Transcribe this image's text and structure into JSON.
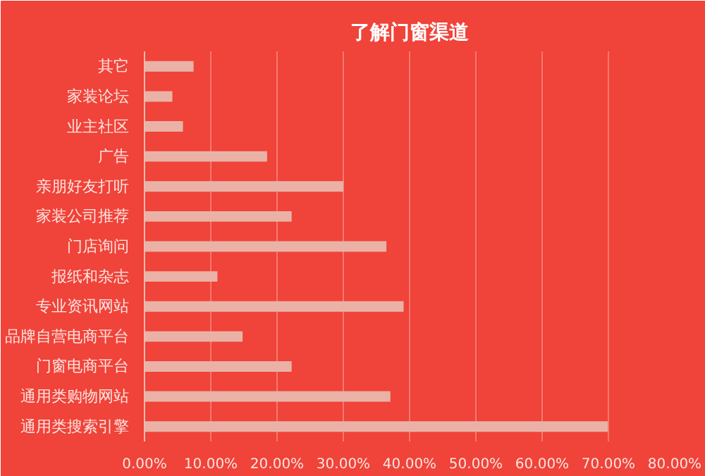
{
  "chart_data": {
    "type": "bar",
    "orientation": "horizontal",
    "title": "了解门窗渠道",
    "categories": [
      "其它",
      "家装论坛",
      "业主社区",
      "广告",
      "亲朋好友打听",
      "家装公司推荐",
      "门店询问",
      "报纸和杂志",
      "专业资讯网站",
      "品牌自营电商平台",
      "门窗电商平台",
      "通用类购物网站",
      "通用类搜索引擎"
    ],
    "values": [
      7.4,
      4.2,
      5.8,
      18.5,
      30.0,
      22.2,
      36.5,
      11.0,
      39.1,
      14.8,
      22.2,
      37.1,
      69.9
    ],
    "color": "#eab2a6",
    "xlim": [
      0,
      80
    ],
    "xticks": [
      {
        "value": 0,
        "label": "0.00%"
      },
      {
        "value": 10,
        "label": "10.00%"
      },
      {
        "value": 20,
        "label": "20.00%"
      },
      {
        "value": 30,
        "label": "30.00%"
      },
      {
        "value": 40,
        "label": "40.00%"
      },
      {
        "value": 50,
        "label": "50.00%"
      },
      {
        "value": 60,
        "label": "60.00%"
      },
      {
        "value": 70,
        "label": "70.00%"
      },
      {
        "value": 80,
        "label": "80.00%"
      }
    ],
    "grid": "x"
  }
}
